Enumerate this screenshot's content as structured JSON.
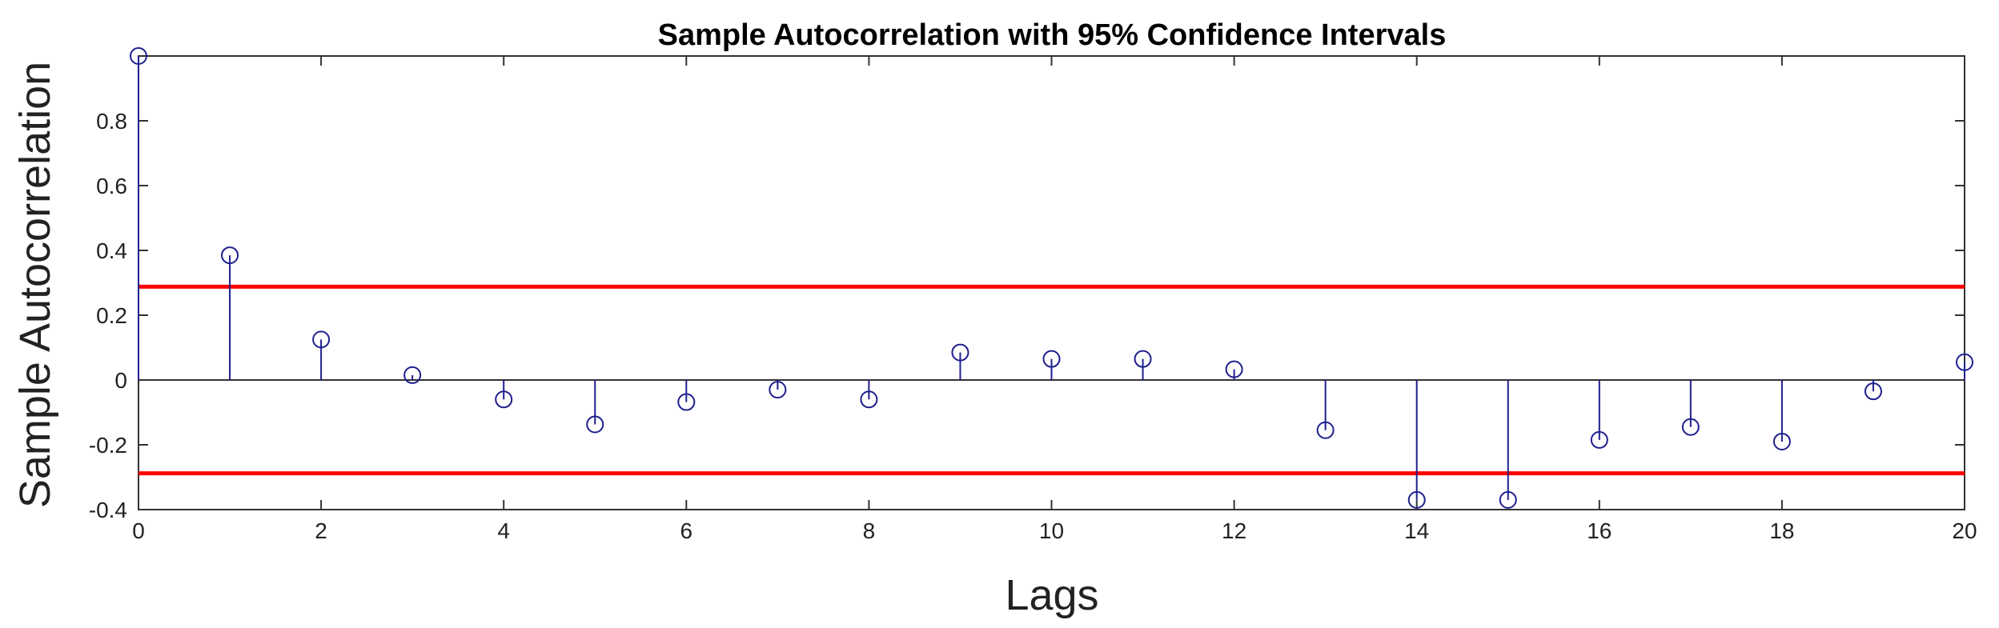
{
  "chart_data": {
    "type": "stem",
    "title": "Sample Autocorrelation with 95% Confidence Intervals",
    "xlabel": "Lags",
    "ylabel": "Sample Autocorrelation",
    "xlim": [
      0,
      20
    ],
    "ylim": [
      -0.4,
      1.0
    ],
    "x_ticks": [
      0,
      2,
      4,
      6,
      8,
      10,
      12,
      14,
      16,
      18,
      20
    ],
    "y_ticks": [
      -0.4,
      -0.2,
      0,
      0.2,
      0.4,
      0.6,
      0.8
    ],
    "x_tick_labels": [
      "0",
      "2",
      "4",
      "6",
      "8",
      "10",
      "12",
      "14",
      "16",
      "18",
      "20"
    ],
    "y_tick_labels": [
      "-0.4",
      "-0.2",
      "0",
      "0.2",
      "0.4",
      "0.6",
      "0.8"
    ],
    "lags": [
      0,
      1,
      2,
      3,
      4,
      5,
      6,
      7,
      8,
      9,
      10,
      11,
      12,
      13,
      14,
      15,
      16,
      17,
      18,
      19,
      20
    ],
    "values": [
      1.0,
      0.385,
      0.125,
      0.015,
      -0.06,
      -0.137,
      -0.068,
      -0.03,
      -0.06,
      0.085,
      0.065,
      0.065,
      0.033,
      -0.155,
      -0.37,
      -0.37,
      -0.185,
      -0.145,
      -0.19,
      -0.035,
      0.055
    ],
    "confidence_bounds": [
      0.288,
      -0.288
    ],
    "grid": false,
    "colors": {
      "stem": "#1f1f8f",
      "bounds": "#ff0000",
      "axes": "#333333"
    }
  }
}
